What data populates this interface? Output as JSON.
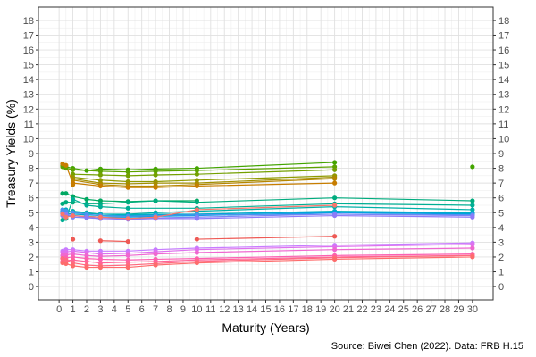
{
  "chart_data": {
    "type": "line",
    "xlabel": "Maturity (Years)",
    "ylabel": "Treasury Yields (%)",
    "caption": "Source: Biwei Chen (2022). Data: FRB H.15",
    "xlim": [
      -1.5,
      31.5
    ],
    "ylim": [
      -0.9,
      18.9
    ],
    "x_ticks": [
      0,
      1,
      2,
      3,
      4,
      5,
      6,
      7,
      8,
      9,
      10,
      11,
      12,
      13,
      14,
      15,
      16,
      17,
      18,
      19,
      20,
      21,
      22,
      23,
      24,
      25,
      26,
      27,
      28,
      29,
      30
    ],
    "y_ticks": [
      0,
      1,
      2,
      3,
      4,
      5,
      6,
      7,
      8,
      9,
      10,
      11,
      12,
      13,
      14,
      15,
      16,
      17,
      18
    ],
    "y_axis_right_duplicate": true,
    "grid": true,
    "legend": "none",
    "panel_border": true,
    "series": [
      {
        "color": "#43A400",
        "x": [
          0.25,
          0.5,
          1,
          2,
          3,
          5,
          7,
          10,
          20
        ],
        "y": [
          8.2,
          8.1,
          8.0,
          7.85,
          7.95,
          7.9,
          7.95,
          8.0,
          8.4
        ]
      },
      {
        "color": "#5DA300",
        "x": [
          0.25,
          0.5,
          1,
          3,
          5,
          7,
          10,
          20
        ],
        "y": [
          8.1,
          8.0,
          7.9,
          7.8,
          7.75,
          7.8,
          7.85,
          8.1
        ]
      },
      {
        "color": "#74A000",
        "x": [
          1,
          3,
          5,
          7,
          10,
          20
        ],
        "y": [
          7.6,
          7.55,
          7.5,
          7.55,
          7.6,
          7.9
        ]
      },
      {
        "color": "#8F9A00",
        "x": [
          1,
          3,
          5,
          7,
          10,
          20
        ],
        "y": [
          7.4,
          7.2,
          7.1,
          7.1,
          7.2,
          7.5
        ]
      },
      {
        "color": "#A18F00",
        "x": [
          1,
          3,
          5,
          7,
          10,
          20
        ],
        "y": [
          7.3,
          7.0,
          6.95,
          7.0,
          7.0,
          7.4
        ]
      },
      {
        "color": "#B58600",
        "x": [
          1,
          3,
          5,
          7,
          10,
          20
        ],
        "y": [
          7.2,
          6.9,
          6.8,
          6.8,
          6.9,
          7.3
        ]
      },
      {
        "color": "#C77D00",
        "x": [
          0.25,
          0.5,
          1,
          3,
          5,
          7,
          10,
          20
        ],
        "y": [
          8.3,
          8.2,
          7.0,
          6.8,
          6.7,
          6.7,
          6.8,
          7.0
        ]
      },
      {
        "color": "#00A862",
        "x": [
          0.25,
          0.5,
          1,
          2,
          3,
          5,
          7,
          10
        ],
        "y": [
          6.3,
          6.3,
          6.1,
          5.9,
          5.8,
          5.75,
          5.8,
          5.8
        ]
      },
      {
        "color": "#00AC7E",
        "x": [
          0.25,
          0.5,
          1,
          2,
          3,
          5,
          7,
          10,
          20,
          30
        ],
        "y": [
          5.6,
          5.7,
          5.7,
          5.6,
          5.6,
          5.7,
          5.8,
          5.7,
          6.0,
          5.8
        ]
      },
      {
        "color": "#00AE94",
        "x": [
          0.25,
          0.5,
          1,
          2,
          3,
          5,
          10,
          20,
          30
        ],
        "y": [
          4.5,
          4.6,
          5.9,
          5.5,
          5.4,
          5.3,
          5.3,
          5.6,
          5.5
        ]
      },
      {
        "color": "#00B0A8",
        "x": [
          0.25,
          0.5,
          1,
          2,
          3,
          5,
          7,
          10,
          20,
          30
        ],
        "y": [
          4.9,
          5.0,
          5.1,
          5.0,
          4.9,
          4.9,
          5.0,
          5.1,
          5.4,
          5.2
        ]
      },
      {
        "color": "#00AFBC",
        "x": [
          0.25,
          0.5,
          1,
          2,
          3,
          5,
          7,
          10,
          20,
          30
        ],
        "y": [
          5.1,
          5.2,
          5.0,
          4.95,
          4.9,
          4.85,
          4.9,
          4.9,
          5.1,
          5.0
        ]
      },
      {
        "color": "#00A9D0",
        "x": [
          0.25,
          0.5,
          1,
          2,
          3,
          5,
          7,
          10,
          20,
          30
        ],
        "y": [
          5.0,
          4.95,
          4.9,
          4.85,
          4.8,
          4.8,
          4.85,
          4.9,
          5.05,
          4.95
        ]
      },
      {
        "color": "#00A1E1",
        "x": [
          0.25,
          0.5,
          1,
          2,
          3,
          5,
          7,
          10,
          20,
          30
        ],
        "y": [
          4.9,
          4.85,
          4.8,
          4.75,
          4.7,
          4.7,
          4.75,
          4.8,
          5.0,
          4.9
        ]
      },
      {
        "color": "#4A93EE",
        "x": [
          0.25,
          0.5,
          1,
          2,
          3,
          5,
          7,
          10,
          20,
          30
        ],
        "y": [
          5.2,
          5.1,
          5.0,
          4.9,
          4.8,
          4.75,
          4.8,
          4.85,
          4.9,
          4.85
        ]
      },
      {
        "color": "#7B84F6",
        "x": [
          0.25,
          0.5,
          1,
          2,
          3,
          5,
          7,
          10,
          20,
          30
        ],
        "y": [
          4.8,
          4.8,
          4.7,
          4.65,
          4.6,
          4.6,
          4.65,
          4.7,
          4.9,
          4.8
        ]
      },
      {
        "color": "#8F7AF8",
        "x": [
          0.25,
          0.5,
          1,
          2,
          3,
          5,
          7,
          10,
          20,
          30
        ],
        "y": [
          4.95,
          4.9,
          4.8,
          4.7,
          4.6,
          4.55,
          4.6,
          4.6,
          4.8,
          4.7
        ]
      },
      {
        "color": "#F8766D",
        "x": [
          0.25,
          0.5,
          1,
          3,
          5,
          7,
          10,
          20
        ],
        "y": [
          4.9,
          4.7,
          4.8,
          4.7,
          4.6,
          4.7,
          5.2,
          5.5
        ]
      },
      {
        "color": "#EE5A55",
        "x": [
          3,
          5
        ],
        "y": [
          3.1,
          3.05
        ]
      },
      {
        "color": "#EE5A55",
        "x": [
          10,
          20
        ],
        "y": [
          3.2,
          3.4
        ]
      },
      {
        "color": "#C77CFF",
        "x": [
          0.25,
          0.5,
          1,
          2,
          3,
          5,
          7,
          10,
          20,
          30
        ],
        "y": [
          2.4,
          2.5,
          2.5,
          2.4,
          2.4,
          2.4,
          2.5,
          2.6,
          2.8,
          2.95
        ]
      },
      {
        "color": "#DE71EE",
        "x": [
          0.25,
          0.5,
          1,
          2,
          3,
          5,
          7,
          10,
          20,
          30
        ],
        "y": [
          2.3,
          2.35,
          2.4,
          2.3,
          2.2,
          2.25,
          2.35,
          2.5,
          2.7,
          2.85
        ]
      },
      {
        "color": "#EF67D0",
        "x": [
          0.25,
          0.5,
          1,
          2,
          3,
          5,
          7,
          10,
          20,
          30
        ],
        "y": [
          2.1,
          2.15,
          2.2,
          2.1,
          2.05,
          2.1,
          2.2,
          2.3,
          2.5,
          2.6
        ]
      },
      {
        "color": "#FB61B3",
        "x": [
          0.25,
          0.5,
          1,
          2,
          3,
          5,
          7,
          10,
          20,
          30
        ],
        "y": [
          1.9,
          1.95,
          2.0,
          1.9,
          1.85,
          1.8,
          1.85,
          1.9,
          2.1,
          2.2
        ]
      },
      {
        "color": "#FF6499",
        "x": [
          0.25,
          0.5,
          1,
          2,
          3,
          5,
          7,
          10,
          20,
          30
        ],
        "y": [
          1.7,
          1.75,
          1.8,
          1.7,
          1.6,
          1.65,
          1.7,
          1.8,
          2.0,
          2.1
        ]
      },
      {
        "color": "#FF6A80",
        "x": [
          0.25,
          0.5,
          1,
          2,
          3,
          5,
          7,
          10,
          20,
          30
        ],
        "y": [
          1.9,
          1.8,
          1.6,
          1.45,
          1.4,
          1.45,
          1.55,
          1.7,
          1.95,
          2.1
        ]
      },
      {
        "color": "#FD6C6C",
        "x": [
          0.25,
          0.5,
          1,
          2,
          3,
          5,
          7,
          10,
          20,
          30
        ],
        "y": [
          1.6,
          1.55,
          1.4,
          1.3,
          1.3,
          1.3,
          1.45,
          1.6,
          1.85,
          2.0
        ]
      }
    ],
    "points": [
      {
        "color": "#43A400",
        "x": 30,
        "y": 8.1
      },
      {
        "color": "#EE5A55",
        "x": 1,
        "y": 3.2
      },
      {
        "color": "#C77D00",
        "x": 1,
        "y": 6.9
      }
    ]
  }
}
